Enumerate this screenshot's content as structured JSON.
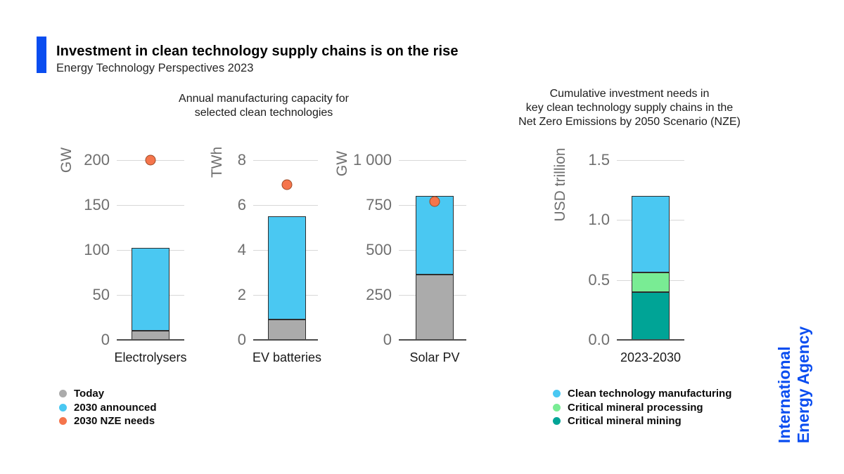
{
  "header": {
    "title": "Investment in clean technology supply chains is on the rise",
    "subtitle": "Energy Technology Perspectives 2023"
  },
  "panels": {
    "left_title_line1": "Annual manufacturing capacity for",
    "left_title_line2": "selected clean technologies",
    "right_title_line1": "Cumulative investment needs in",
    "right_title_line2": "key clean technology supply chains in the",
    "right_title_line3": "Net Zero Emissions by 2050 Scenario (NZE)"
  },
  "colors": {
    "accent": "#0a4df0",
    "today": "#ababab",
    "announced": "#4ac8f2",
    "nze": "#f5754c",
    "nze_outline": "#9c4a26",
    "manufacturing": "#4ac8f2",
    "processing": "#79ec94",
    "mining": "#00a496",
    "grid": "#d8d8d8",
    "axis": "#4d4d4d",
    "tick_text": "#6f6f6f"
  },
  "chart_data": [
    {
      "type": "bar",
      "group_title": "Annual manufacturing capacity for selected clean technologies",
      "category": "Electrolysers",
      "ylabel": "GW",
      "ylim": [
        0,
        200
      ],
      "yticks": [
        {
          "v": 0,
          "t": "0"
        },
        {
          "v": 50,
          "t": "50"
        },
        {
          "v": 100,
          "t": "100"
        },
        {
          "v": 150,
          "t": "150"
        },
        {
          "v": 200,
          "t": "200"
        }
      ],
      "stack": [
        {
          "name": "Today",
          "to": 10,
          "color_key": "today"
        },
        {
          "name": "2030 announced",
          "to": 102,
          "color_key": "announced"
        }
      ],
      "marker": {
        "name": "2030 NZE needs",
        "value": 200,
        "color_key": "nze"
      }
    },
    {
      "type": "bar",
      "group_title": "Annual manufacturing capacity for selected clean technologies",
      "category": "EV batteries",
      "ylabel": "TWh",
      "ylim": [
        0,
        8
      ],
      "yticks": [
        {
          "v": 0,
          "t": "0"
        },
        {
          "v": 2,
          "t": "2"
        },
        {
          "v": 4,
          "t": "4"
        },
        {
          "v": 6,
          "t": "6"
        },
        {
          "v": 8,
          "t": "8"
        }
      ],
      "stack": [
        {
          "name": "Today",
          "to": 0.9,
          "color_key": "today"
        },
        {
          "name": "2030 announced",
          "to": 5.5,
          "color_key": "announced"
        }
      ],
      "marker": {
        "name": "2030 NZE needs",
        "value": 6.9,
        "color_key": "nze"
      }
    },
    {
      "type": "bar",
      "group_title": "Annual manufacturing capacity for selected clean technologies",
      "category": "Solar PV",
      "ylabel": "GW",
      "ylim": [
        0,
        1000
      ],
      "yticks": [
        {
          "v": 0,
          "t": "0"
        },
        {
          "v": 250,
          "t": "250"
        },
        {
          "v": 500,
          "t": "500"
        },
        {
          "v": 750,
          "t": "750"
        },
        {
          "v": 1000,
          "t": "1 000"
        }
      ],
      "stack": [
        {
          "name": "Today",
          "to": 365,
          "color_key": "today"
        },
        {
          "name": "2030 announced",
          "to": 800,
          "color_key": "announced"
        }
      ],
      "marker": {
        "name": "2030 NZE needs",
        "value": 770,
        "color_key": "nze"
      }
    },
    {
      "type": "bar",
      "group_title": "Cumulative investment needs in key clean technology supply chains in the Net Zero Emissions by 2050 Scenario (NZE)",
      "category": "2023-2030",
      "ylabel": "USD trillion",
      "ylim": [
        0,
        1.5
      ],
      "yticks": [
        {
          "v": 0,
          "t": "0.0"
        },
        {
          "v": 0.5,
          "t": "0.5"
        },
        {
          "v": 1.0,
          "t": "1.0"
        },
        {
          "v": 1.5,
          "t": "1.5"
        }
      ],
      "stack": [
        {
          "name": "Critical mineral mining",
          "to": 0.4,
          "color_key": "mining"
        },
        {
          "name": "Critical mineral processing",
          "to": 0.56,
          "color_key": "processing"
        },
        {
          "name": "Clean technology manufacturing",
          "to": 1.2,
          "color_key": "manufacturing"
        }
      ],
      "marker": null
    }
  ],
  "legend_left": {
    "items": [
      {
        "label": "Today",
        "color_key": "today"
      },
      {
        "label": "2030 announced",
        "color_key": "announced"
      },
      {
        "label": "2030 NZE needs",
        "color_key": "nze"
      }
    ]
  },
  "legend_right": {
    "items": [
      {
        "label": "Clean technology manufacturing",
        "color_key": "manufacturing"
      },
      {
        "label": "Critical mineral processing",
        "color_key": "processing"
      },
      {
        "label": "Critical mineral mining",
        "color_key": "mining"
      }
    ]
  },
  "branding": {
    "line1": "International",
    "line2": "Energy Agency"
  }
}
